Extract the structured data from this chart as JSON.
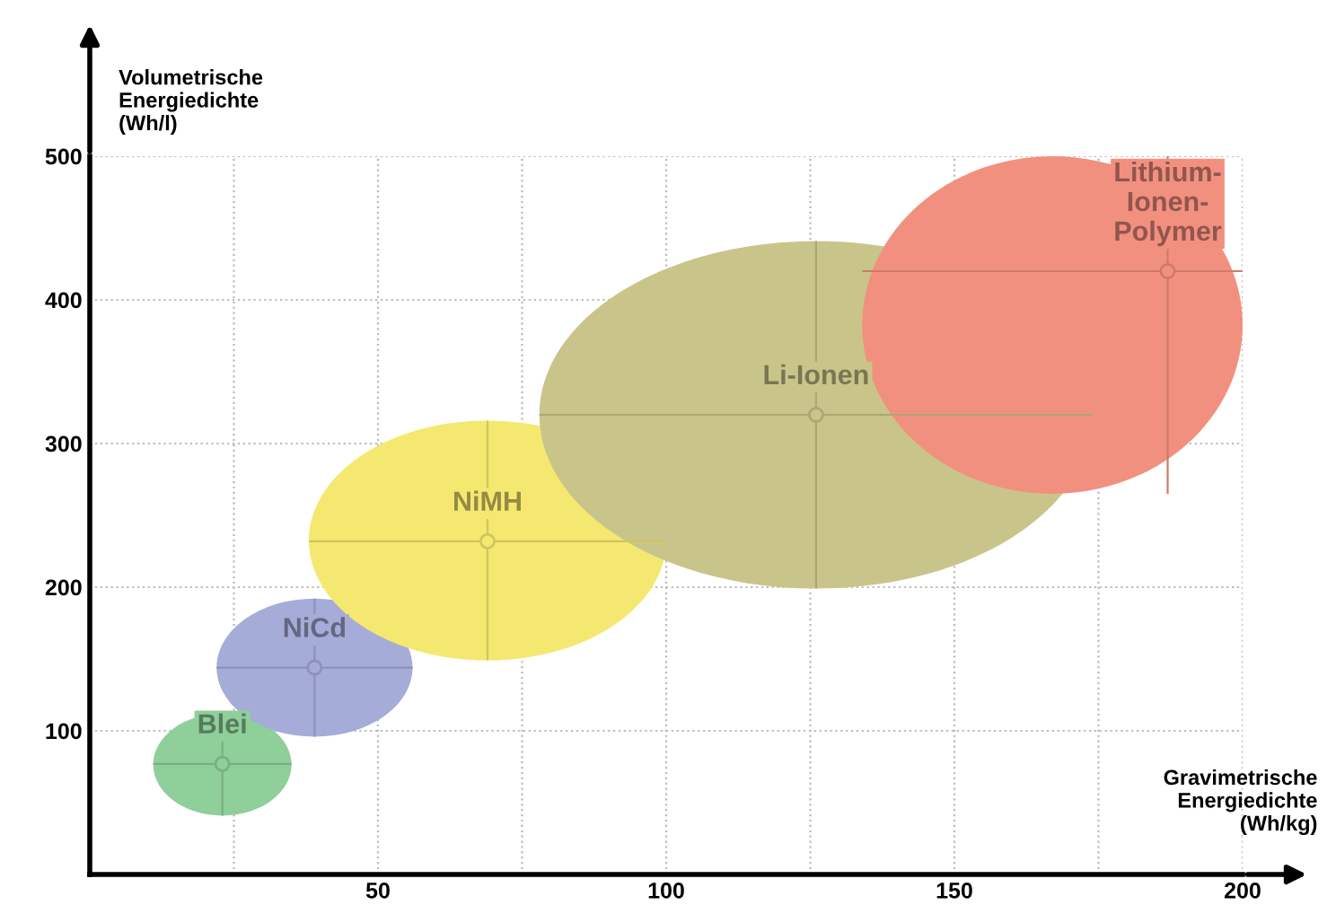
{
  "chart_data": {
    "type": "scatter",
    "xlabel": "Gravimetrische\nEnergiedichte\n(Wh/kg)",
    "ylabel": "Volumetrische\nEnergiedichte\n(Wh/l)",
    "xlim": [
      0,
      200
    ],
    "ylim": [
      0,
      500
    ],
    "xticks": [
      {
        "value": 25,
        "label": null
      },
      50,
      {
        "value": 75,
        "label": null
      },
      100,
      {
        "value": 125,
        "label": null
      },
      150,
      {
        "value": 175,
        "label": null
      },
      200
    ],
    "yticks": [
      100,
      200,
      300,
      400,
      500
    ],
    "grid": true,
    "legend": false,
    "series": [
      {
        "name": "Blei",
        "color": "#8fcf9a",
        "x": [
          23
        ],
        "values": [
          77
        ],
        "xerrors": [
          [
            11,
            35
          ]
        ],
        "errors": [
          [
            41,
            112
          ]
        ]
      },
      {
        "name": "NiCd",
        "color": "#a6acd8",
        "x": [
          39
        ],
        "values": [
          144
        ],
        "xerrors": [
          [
            22,
            56
          ]
        ],
        "errors": [
          [
            96,
            192
          ]
        ]
      },
      {
        "name": "NiMH",
        "color": "#f5e870",
        "x": [
          69
        ],
        "values": [
          232
        ],
        "xerrors": [
          [
            38,
            100
          ]
        ],
        "errors": [
          [
            149,
            316
          ]
        ]
      },
      {
        "name": "Li-Ionen",
        "color": "#c9c58a",
        "x": [
          126
        ],
        "values": [
          320
        ],
        "xerrors": [
          [
            78,
            174
          ]
        ],
        "errors": [
          [
            199,
            441
          ]
        ]
      },
      {
        "name": "Lithium-\nIonen-\nPolymer",
        "color": "#f29080",
        "x": [
          187
        ],
        "values": [
          420
        ],
        "xerrors": [
          [
            134,
            200
          ]
        ],
        "errors": [
          [
            265,
            500
          ]
        ]
      }
    ]
  }
}
